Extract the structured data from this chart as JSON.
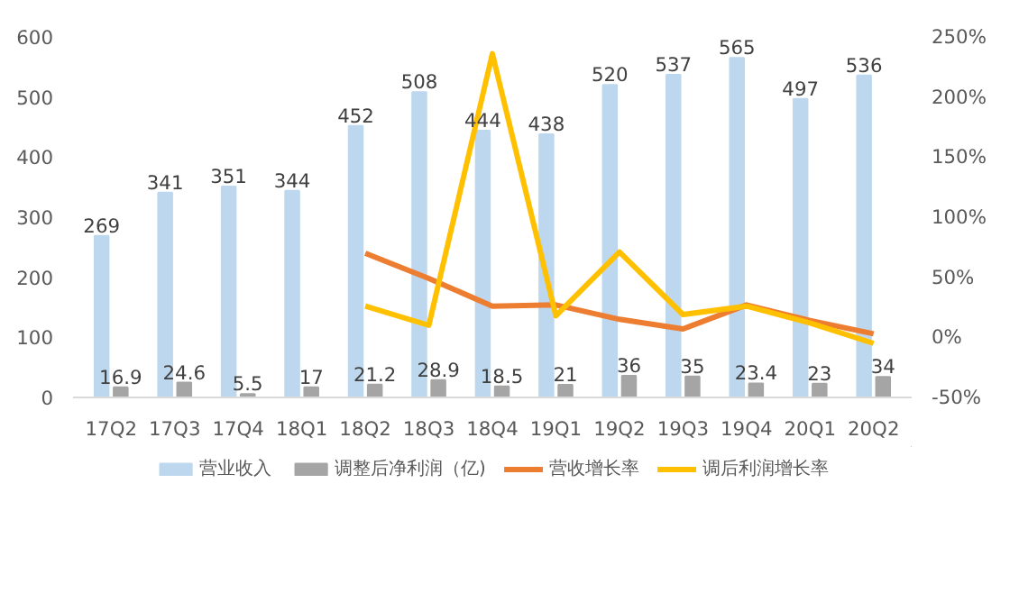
{
  "chart_data": {
    "type": "bar",
    "categories": [
      "17Q2",
      "17Q3",
      "17Q4",
      "18Q1",
      "18Q2",
      "18Q3",
      "18Q4",
      "19Q1",
      "19Q2",
      "19Q3",
      "19Q4",
      "20Q1",
      "20Q2"
    ],
    "series": [
      {
        "name": "营业收入",
        "color": "#bdd7ee",
        "values": [
          269,
          341,
          351,
          344,
          452,
          508,
          444,
          438,
          520,
          537,
          565,
          497,
          536
        ],
        "value_labels": [
          "269",
          "341",
          "351",
          "344",
          "452",
          "508",
          "444",
          "438",
          "520",
          "537",
          "565",
          "497",
          "536"
        ]
      },
      {
        "name": "调整后净利润（亿)",
        "color": "#a5a5a5",
        "values": [
          16.9,
          24.6,
          5.5,
          17,
          21.2,
          28.9,
          18.5,
          21,
          36,
          35,
          23.4,
          23,
          34
        ],
        "value_labels": [
          "16.9",
          "24.6",
          "5.5",
          "17",
          "21.2",
          "28.9",
          "18.5",
          "21",
          "36",
          "35",
          "23.4",
          "23",
          "34"
        ]
      },
      {
        "name": "营收增长率",
        "type": "line",
        "axis": "y2",
        "color": "#ed7d31",
        "values": [
          null,
          null,
          null,
          null,
          70,
          49,
          26,
          27,
          15,
          7,
          27,
          14,
          3
        ]
      },
      {
        "name": "调后利润增长率",
        "type": "line",
        "axis": "y2",
        "color": "#ffc000",
        "values": [
          null,
          null,
          null,
          null,
          26,
          10,
          236,
          18,
          71,
          19,
          26,
          12,
          -5
        ]
      }
    ],
    "ylim": [
      0,
      600
    ],
    "yticks": [
      0,
      100,
      200,
      300,
      400,
      500,
      600
    ],
    "y2lim": [
      -50,
      250
    ],
    "y2ticks": [
      {
        "value": -50,
        "label": "-50%"
      },
      {
        "value": 0,
        "label": "0%"
      },
      {
        "value": 50,
        "label": "50%"
      },
      {
        "value": 100,
        "label": "100%"
      },
      {
        "value": 150,
        "label": "150%"
      },
      {
        "value": 200,
        "label": "200%"
      },
      {
        "value": 250,
        "label": "250%"
      }
    ],
    "legend": "bottom",
    "grid": false,
    "marker": "none",
    "line_style": "solid"
  }
}
